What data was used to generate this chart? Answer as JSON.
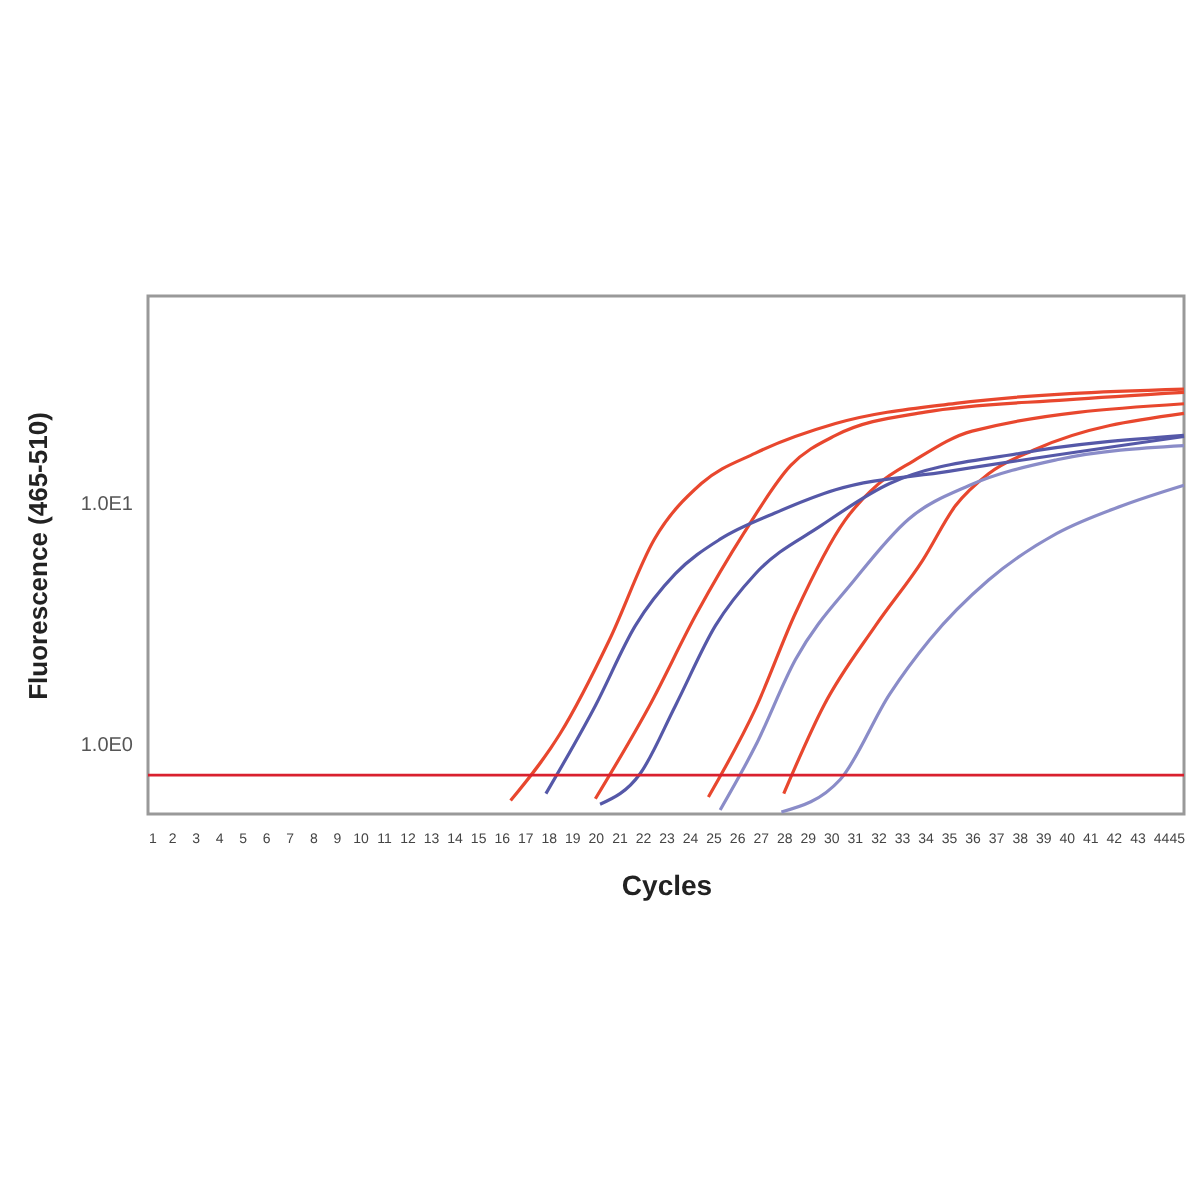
{
  "chart_data": {
    "type": "line",
    "xlabel": "Cycles",
    "ylabel": "Fluorescence (465-510)",
    "log": "y",
    "grid": false,
    "legend": false,
    "marker": "none",
    "line_style": "solid",
    "xlim": [
      1,
      45
    ],
    "xticks": [
      1,
      2,
      3,
      4,
      5,
      6,
      7,
      8,
      9,
      10,
      11,
      12,
      13,
      14,
      15,
      16,
      17,
      18,
      19,
      20,
      21,
      22,
      23,
      24,
      25,
      26,
      27,
      28,
      29,
      30,
      31,
      32,
      33,
      34,
      35,
      36,
      37,
      38,
      39,
      40,
      41,
      42,
      43,
      44,
      45
    ],
    "ylim": [
      0.51,
      73
    ],
    "yticks": [
      {
        "value": 1,
        "label": "1.0E0"
      },
      {
        "value": 10,
        "label": "1.0E1"
      }
    ],
    "ref_lines": [
      {
        "axis": "y",
        "value": 0.74,
        "color": "#d9202e"
      }
    ],
    "series": [
      {
        "color": "#e8472e",
        "x": [
          16.4,
          18.5,
          20.6,
          22.5,
          24.5,
          26.8,
          30.2,
          35.3,
          45
        ],
        "values": [
          0.58,
          1.1,
          2.71,
          7.08,
          12.1,
          16.2,
          21.5,
          26.1,
          29.9
        ]
      },
      {
        "color": "#e8472e",
        "x": [
          20.0,
          22.3,
          24.3,
          26.3,
          28.3,
          30.2,
          34,
          40,
          45
        ],
        "values": [
          0.59,
          1.44,
          3.48,
          7.5,
          14.4,
          19.2,
          24,
          27,
          29
        ]
      },
      {
        "color": "#e8472e",
        "x": [
          24.8,
          26.8,
          28.5,
          30.6,
          32,
          33.5,
          36,
          45
        ],
        "values": [
          0.6,
          1.4,
          3.5,
          8.5,
          12,
          15,
          20,
          26
        ]
      },
      {
        "color": "#e8472e",
        "x": [
          28.0,
          29.7,
          31.9,
          33.9,
          35.3,
          36.7,
          38.7,
          45
        ],
        "values": [
          0.62,
          1.44,
          3.1,
          5.8,
          9.8,
          13.3,
          16.8,
          23.7
        ]
      },
      {
        "color": "#5558a8",
        "x": [
          17.9,
          20.0,
          21.7,
          23.4,
          25.3,
          27.6,
          30.2,
          35,
          45
        ],
        "values": [
          0.62,
          1.44,
          3.1,
          5.1,
          7.1,
          9.1,
          11.4,
          13.6,
          19
        ]
      },
      {
        "color": "#5558a8",
        "x": [
          20.2,
          21.9,
          23.4,
          25.1,
          26.8,
          29.6,
          32.5,
          38.1,
          45
        ],
        "values": [
          0.56,
          0.75,
          1.44,
          3.1,
          5.1,
          8.1,
          12.1,
          16.2,
          19.2
        ]
      },
      {
        "color": "#8a8cc8",
        "x": [
          25.3,
          26.8,
          28.5,
          31.0,
          33.3,
          35.9,
          39.6,
          45
        ],
        "values": [
          0.53,
          0.98,
          2.24,
          4.8,
          8.6,
          11.9,
          15.2,
          17.4
        ]
      },
      {
        "color": "#8a8cc8",
        "x": [
          27.9,
          30.4,
          32.5,
          34.2,
          36.7,
          39.6,
          42.4,
          45
        ],
        "values": [
          0.52,
          0.71,
          1.61,
          2.71,
          4.8,
          7.5,
          9.8,
          11.9
        ]
      }
    ]
  }
}
